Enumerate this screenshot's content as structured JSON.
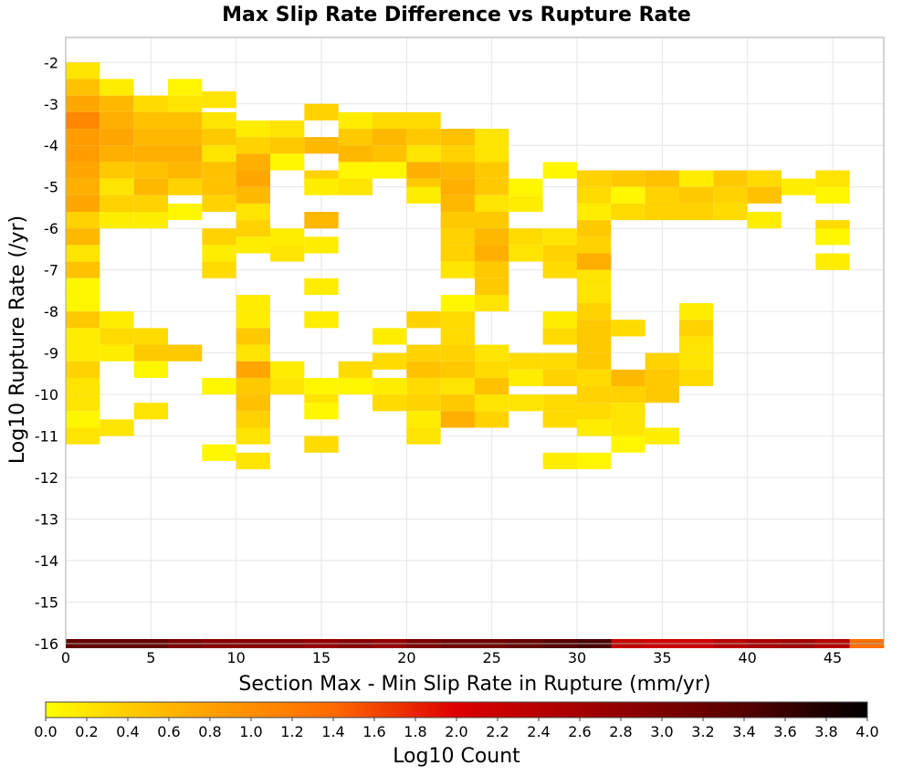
{
  "chart_data": {
    "type": "heatmap",
    "title": "Max Slip Rate Difference vs Rupture Rate",
    "xlabel": "Section Max - Min Slip Rate in Rupture (mm/yr)",
    "ylabel": "Log10 Rupture Rate (/yr)",
    "colorbar_label": "Log10 Count",
    "x_ticks": [
      "0",
      "5",
      "10",
      "15",
      "20",
      "25",
      "30",
      "35",
      "40",
      "45"
    ],
    "y_ticks": [
      "-2",
      "-3",
      "-4",
      "-5",
      "-6",
      "-7",
      "-8",
      "-9",
      "-10",
      "-11",
      "-12",
      "-13",
      "-14",
      "-15",
      "-16"
    ],
    "colorbar_ticks": [
      "0.0",
      "0.2",
      "0.4",
      "0.6",
      "0.8",
      "1.0",
      "1.2",
      "1.4",
      "1.6",
      "1.8",
      "2.0",
      "2.2",
      "2.4",
      "2.6",
      "2.8",
      "3.0",
      "3.2",
      "3.4",
      "3.6",
      "3.8",
      "4.0"
    ],
    "xlim": [
      0,
      48
    ],
    "ylim": [
      -16,
      -1.4
    ],
    "clim": [
      0,
      4
    ],
    "bin_width_x": 2,
    "bin_height_y": 0.4,
    "grid": true,
    "colormap": [
      "#ffff00",
      "#ffcc00",
      "#ff9900",
      "#ff5500",
      "#dd0000",
      "#990000",
      "#550000",
      "#000000"
    ],
    "cells": [
      [
        1,
        -2.2,
        0.3
      ],
      [
        1,
        -2.6,
        0.7
      ],
      [
        1,
        -3.0,
        1.0
      ],
      [
        1,
        -3.4,
        1.3
      ],
      [
        1,
        -3.8,
        1.1
      ],
      [
        1,
        -4.2,
        1.1
      ],
      [
        1,
        -4.6,
        1.0
      ],
      [
        1,
        -5.0,
        0.9
      ],
      [
        1,
        -5.4,
        1.0
      ],
      [
        1,
        -5.8,
        0.5
      ],
      [
        1,
        -6.2,
        0.8
      ],
      [
        1,
        -6.6,
        0.3
      ],
      [
        1,
        -7.0,
        0.7
      ],
      [
        1,
        -7.4,
        0.1
      ],
      [
        1,
        -7.8,
        0.1
      ],
      [
        1,
        -8.2,
        0.6
      ],
      [
        1,
        -8.6,
        0.2
      ],
      [
        1,
        -9.0,
        0.2
      ],
      [
        1,
        -9.4,
        0.5
      ],
      [
        1,
        -9.8,
        0.3
      ],
      [
        1,
        -10.2,
        0.3
      ],
      [
        1,
        -10.6,
        0.1
      ],
      [
        1,
        -11.0,
        0.3
      ],
      [
        3,
        -2.6,
        0.2
      ],
      [
        3,
        -3.0,
        0.8
      ],
      [
        3,
        -3.4,
        0.9
      ],
      [
        3,
        -3.8,
        1.0
      ],
      [
        3,
        -4.2,
        0.9
      ],
      [
        3,
        -4.6,
        0.6
      ],
      [
        3,
        -5.0,
        0.3
      ],
      [
        3,
        -5.4,
        0.5
      ],
      [
        3,
        -5.8,
        0.2
      ],
      [
        3,
        -8.2,
        0.2
      ],
      [
        3,
        -8.6,
        0.4
      ],
      [
        3,
        -9.0,
        0.2
      ],
      [
        3,
        -10.8,
        0.3
      ],
      [
        5,
        -3.0,
        0.4
      ],
      [
        5,
        -3.4,
        0.7
      ],
      [
        5,
        -3.8,
        0.8
      ],
      [
        5,
        -4.2,
        0.9
      ],
      [
        5,
        -4.6,
        0.7
      ],
      [
        5,
        -5.0,
        0.8
      ],
      [
        5,
        -5.4,
        0.5
      ],
      [
        5,
        -5.8,
        0.2
      ],
      [
        5,
        -8.6,
        0.4
      ],
      [
        5,
        -9.0,
        0.6
      ],
      [
        5,
        -9.4,
        0.1
      ],
      [
        5,
        -10.4,
        0.3
      ],
      [
        7,
        -2.6,
        0.1
      ],
      [
        7,
        -3.0,
        0.3
      ],
      [
        7,
        -3.4,
        0.7
      ],
      [
        7,
        -3.8,
        0.8
      ],
      [
        7,
        -4.2,
        0.9
      ],
      [
        7,
        -4.6,
        0.8
      ],
      [
        7,
        -5.0,
        0.5
      ],
      [
        7,
        -5.6,
        0.1
      ],
      [
        7,
        -9.0,
        0.6
      ],
      [
        9,
        -2.9,
        0.3
      ],
      [
        9,
        -3.4,
        0.3
      ],
      [
        9,
        -3.8,
        0.6
      ],
      [
        9,
        -4.2,
        0.3
      ],
      [
        9,
        -4.6,
        0.7
      ],
      [
        9,
        -5.0,
        0.7
      ],
      [
        9,
        -5.4,
        0.5
      ],
      [
        9,
        -6.2,
        0.5
      ],
      [
        9,
        -6.6,
        0.2
      ],
      [
        9,
        -7.0,
        0.4
      ],
      [
        9,
        -9.8,
        0.1
      ],
      [
        9,
        -11.4,
        0.1
      ],
      [
        11,
        -3.6,
        0.2
      ],
      [
        11,
        -4.0,
        0.5
      ],
      [
        11,
        -4.4,
        0.9
      ],
      [
        11,
        -4.8,
        1.0
      ],
      [
        11,
        -5.2,
        0.8
      ],
      [
        11,
        -5.6,
        0.3
      ],
      [
        11,
        -6.0,
        0.5
      ],
      [
        11,
        -6.4,
        0.2
      ],
      [
        11,
        -7.8,
        0.2
      ],
      [
        11,
        -8.2,
        0.2
      ],
      [
        11,
        -8.6,
        0.6
      ],
      [
        11,
        -9.0,
        0.3
      ],
      [
        11,
        -9.4,
        1.0
      ],
      [
        11,
        -9.8,
        0.6
      ],
      [
        11,
        -10.2,
        0.7
      ],
      [
        11,
        -10.6,
        0.5
      ],
      [
        11,
        -11.0,
        0.3
      ],
      [
        11,
        -11.6,
        0.3
      ],
      [
        13,
        -3.6,
        0.3
      ],
      [
        13,
        -4.0,
        0.6
      ],
      [
        13,
        -4.4,
        0.1
      ],
      [
        13,
        -6.2,
        0.2
      ],
      [
        13,
        -6.6,
        0.3
      ],
      [
        13,
        -9.4,
        0.2
      ],
      [
        13,
        -9.8,
        0.3
      ],
      [
        15,
        -3.2,
        0.5
      ],
      [
        15,
        -4.0,
        0.8
      ],
      [
        15,
        -4.8,
        0.5
      ],
      [
        15,
        -5.0,
        0.2
      ],
      [
        15,
        -5.8,
        0.8
      ],
      [
        15,
        -6.4,
        0.2
      ],
      [
        15,
        -7.4,
        0.2
      ],
      [
        15,
        -8.2,
        0.2
      ],
      [
        15,
        -9.8,
        0.1
      ],
      [
        15,
        -10.2,
        0.3
      ],
      [
        15,
        -10.4,
        0.1
      ],
      [
        15,
        -11.2,
        0.4
      ],
      [
        17,
        -3.4,
        0.2
      ],
      [
        17,
        -3.8,
        0.6
      ],
      [
        17,
        -4.2,
        0.8
      ],
      [
        17,
        -4.6,
        0.1
      ],
      [
        17,
        -5.0,
        0.3
      ],
      [
        17,
        -9.4,
        0.4
      ],
      [
        17,
        -9.8,
        0.1
      ],
      [
        19,
        -3.4,
        0.4
      ],
      [
        19,
        -3.8,
        0.8
      ],
      [
        19,
        -4.2,
        0.7
      ],
      [
        19,
        -4.6,
        0.1
      ],
      [
        19,
        -8.6,
        0.2
      ],
      [
        19,
        -9.2,
        0.4
      ],
      [
        19,
        -9.8,
        0.2
      ],
      [
        19,
        -10.2,
        0.4
      ],
      [
        21,
        -3.4,
        0.4
      ],
      [
        21,
        -3.8,
        0.6
      ],
      [
        21,
        -4.2,
        0.3
      ],
      [
        21,
        -4.6,
        0.9
      ],
      [
        21,
        -5.0,
        0.6
      ],
      [
        21,
        -5.2,
        0.2
      ],
      [
        21,
        -8.2,
        0.5
      ],
      [
        21,
        -9.0,
        0.5
      ],
      [
        21,
        -9.4,
        0.7
      ],
      [
        21,
        -9.8,
        0.4
      ],
      [
        21,
        -10.2,
        0.5
      ],
      [
        21,
        -10.6,
        0.2
      ],
      [
        21,
        -11.0,
        0.3
      ],
      [
        23,
        -3.8,
        0.7
      ],
      [
        23,
        -4.2,
        0.5
      ],
      [
        23,
        -4.6,
        0.8
      ],
      [
        23,
        -5.0,
        0.9
      ],
      [
        23,
        -5.4,
        0.8
      ],
      [
        23,
        -5.8,
        0.6
      ],
      [
        23,
        -6.2,
        0.5
      ],
      [
        23,
        -6.6,
        0.5
      ],
      [
        23,
        -7.0,
        0.3
      ],
      [
        23,
        -7.8,
        0.1
      ],
      [
        23,
        -8.2,
        0.4
      ],
      [
        23,
        -8.6,
        0.4
      ],
      [
        23,
        -9.0,
        0.5
      ],
      [
        23,
        -9.4,
        0.6
      ],
      [
        23,
        -9.8,
        0.3
      ],
      [
        23,
        -10.2,
        0.6
      ],
      [
        23,
        -10.6,
        0.9
      ],
      [
        25,
        -3.8,
        0.3
      ],
      [
        25,
        -4.2,
        0.3
      ],
      [
        25,
        -4.6,
        0.6
      ],
      [
        25,
        -5.0,
        0.6
      ],
      [
        25,
        -5.4,
        0.3
      ],
      [
        25,
        -5.8,
        0.6
      ],
      [
        25,
        -6.2,
        0.8
      ],
      [
        25,
        -6.6,
        0.9
      ],
      [
        25,
        -7.0,
        0.6
      ],
      [
        25,
        -7.4,
        0.6
      ],
      [
        25,
        -7.8,
        0.3
      ],
      [
        25,
        -9.0,
        0.3
      ],
      [
        25,
        -9.4,
        0.4
      ],
      [
        25,
        -9.8,
        0.7
      ],
      [
        25,
        -10.2,
        0.3
      ],
      [
        25,
        -10.6,
        0.5
      ],
      [
        27,
        -5.0,
        0.1
      ],
      [
        27,
        -5.4,
        0.2
      ],
      [
        27,
        -6.2,
        0.4
      ],
      [
        27,
        -6.6,
        0.3
      ],
      [
        27,
        -9.2,
        0.4
      ],
      [
        27,
        -9.6,
        0.2
      ],
      [
        27,
        -10.2,
        0.3
      ],
      [
        29,
        -4.6,
        0.1
      ],
      [
        29,
        -6.2,
        0.3
      ],
      [
        29,
        -6.6,
        0.5
      ],
      [
        29,
        -7.0,
        0.4
      ],
      [
        29,
        -8.2,
        0.2
      ],
      [
        29,
        -8.6,
        0.4
      ],
      [
        29,
        -9.2,
        0.4
      ],
      [
        29,
        -9.6,
        0.5
      ],
      [
        29,
        -10.2,
        0.4
      ],
      [
        29,
        -10.6,
        0.4
      ],
      [
        29,
        -11.6,
        0.2
      ],
      [
        31,
        -4.8,
        0.5
      ],
      [
        31,
        -5.2,
        0.4
      ],
      [
        31,
        -5.6,
        0.2
      ],
      [
        31,
        -6.0,
        0.6
      ],
      [
        31,
        -6.4,
        0.5
      ],
      [
        31,
        -6.8,
        0.9
      ],
      [
        31,
        -7.2,
        0.3
      ],
      [
        31,
        -7.6,
        0.3
      ],
      [
        31,
        -8.0,
        0.5
      ],
      [
        31,
        -8.4,
        0.6
      ],
      [
        31,
        -8.8,
        0.6
      ],
      [
        31,
        -9.2,
        0.6
      ],
      [
        31,
        -9.6,
        0.4
      ],
      [
        31,
        -10.0,
        0.5
      ],
      [
        31,
        -10.4,
        0.4
      ],
      [
        31,
        -10.8,
        0.2
      ],
      [
        31,
        -11.6,
        0.1
      ],
      [
        33,
        -4.8,
        0.6
      ],
      [
        33,
        -5.2,
        0.1
      ],
      [
        33,
        -5.6,
        0.4
      ],
      [
        33,
        -8.4,
        0.4
      ],
      [
        33,
        -9.6,
        0.8
      ],
      [
        33,
        -10.0,
        0.5
      ],
      [
        33,
        -10.4,
        0.3
      ],
      [
        33,
        -10.8,
        0.3
      ],
      [
        33,
        -11.2,
        0.1
      ],
      [
        35,
        -4.8,
        0.7
      ],
      [
        35,
        -5.2,
        0.5
      ],
      [
        35,
        -5.6,
        0.5
      ],
      [
        35,
        -9.2,
        0.5
      ],
      [
        35,
        -9.6,
        0.6
      ],
      [
        35,
        -10.0,
        0.6
      ],
      [
        35,
        -11.0,
        0.2
      ],
      [
        37,
        -4.8,
        0.2
      ],
      [
        37,
        -5.2,
        0.6
      ],
      [
        37,
        -5.6,
        0.5
      ],
      [
        37,
        -8.0,
        0.2
      ],
      [
        37,
        -8.4,
        0.5
      ],
      [
        37,
        -8.8,
        0.3
      ],
      [
        37,
        -9.2,
        0.3
      ],
      [
        37,
        -9.6,
        0.4
      ],
      [
        39,
        -4.8,
        0.6
      ],
      [
        39,
        -5.2,
        0.5
      ],
      [
        39,
        -5.6,
        0.4
      ],
      [
        41,
        -4.8,
        0.4
      ],
      [
        41,
        -5.2,
        0.7
      ],
      [
        41,
        -5.8,
        0.2
      ],
      [
        43,
        -5.0,
        0.2
      ],
      [
        45,
        -4.8,
        0.3
      ],
      [
        45,
        -5.2,
        0.1
      ],
      [
        45,
        -6.0,
        0.4
      ],
      [
        45,
        -6.2,
        0.1
      ],
      [
        45,
        -6.8,
        0.2
      ]
    ],
    "bottom_row_y": -16.0,
    "bottom_row_values": [
      3.3,
      3.3,
      3.3,
      3.1,
      3.0,
      3.0,
      3.0,
      2.9,
      3.0,
      2.9,
      3.1,
      3.2,
      3.2,
      3.3,
      3.4,
      3.5,
      2.5,
      2.4,
      2.4,
      2.6,
      2.7,
      2.8,
      2.6,
      1.5
    ]
  }
}
